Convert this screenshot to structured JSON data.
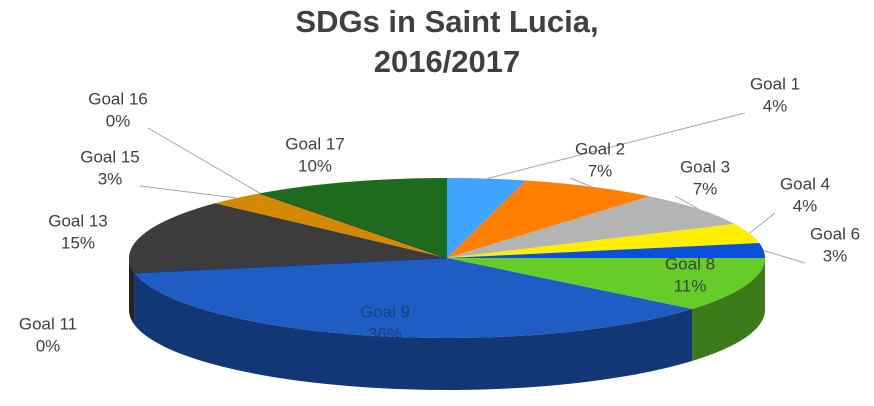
{
  "chart_data": {
    "type": "pie3d",
    "title": "SDGs in Saint Lucia,",
    "subtitle": "2016/2017",
    "categories": [
      "Goal 1",
      "Goal 2",
      "Goal 3",
      "Goal 4",
      "Goal 6",
      "Goal 8",
      "Goal 9",
      "Goal 11",
      "Goal 13",
      "Goal 15",
      "Goal 16",
      "Goal 17"
    ],
    "values": [
      4,
      7,
      7,
      4,
      3,
      11,
      36,
      0,
      15,
      3,
      0,
      10
    ],
    "value_labels": [
      "4%",
      "7%",
      "7%",
      "4%",
      "3%",
      "11%",
      "36%",
      "0%",
      "15%",
      "3%",
      "0%",
      "10%"
    ],
    "colors": [
      "#3fa4ff",
      "#ff7f00",
      "#b4b4b4",
      "#ffee00",
      "#0a50d8",
      "#66cc2a",
      "#1f5cc4",
      "#0a3a8a",
      "#3c3c3c",
      "#d48a00",
      "#103070",
      "#1e6b1e"
    ]
  }
}
